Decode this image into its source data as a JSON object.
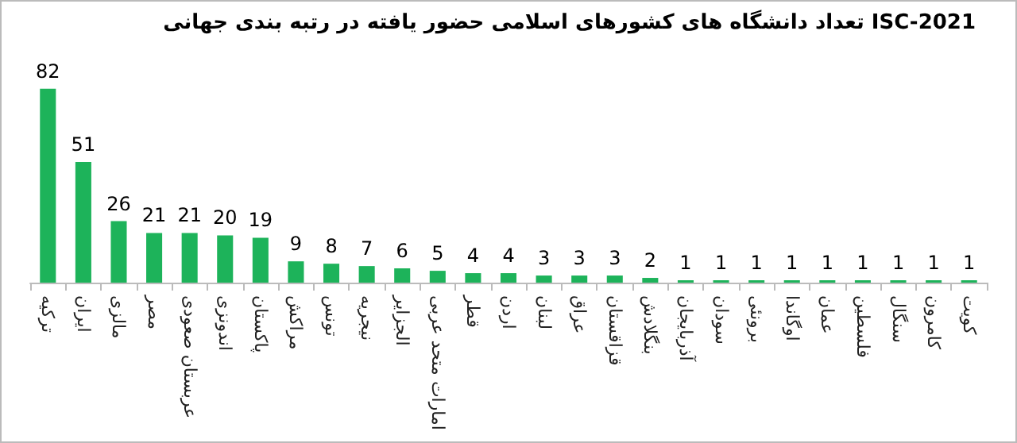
{
  "chart_data": {
    "type": "bar",
    "title": "تعداد دانشگاه های کشورهای اسلامی حضور یافته در رتبه بندی جهانی ISC-2021",
    "categories": [
      "ترکیه",
      "ایران",
      "مالزی",
      "مصر",
      "عربستان صعودی",
      "اندونزی",
      "پاکستان",
      "مراکش",
      "تونس",
      "نیجریه",
      "الجزایر",
      "امارات متحد عربی",
      "قطر",
      "اردن",
      "لبنان",
      "عراق",
      "قزاقستان",
      "بنگلادش",
      "آذربایجان",
      "سودان",
      "برونئی",
      "اوگاندا",
      "عمان",
      "فلسطین",
      "سنگال",
      "کامرون",
      "کویت"
    ],
    "values": [
      82,
      51,
      26,
      21,
      21,
      20,
      19,
      9,
      8,
      7,
      6,
      5,
      4,
      4,
      3,
      3,
      3,
      2,
      1,
      1,
      1,
      1,
      1,
      1,
      1,
      1,
      1
    ],
    "color": "#1db35a",
    "data_labels": true
  }
}
